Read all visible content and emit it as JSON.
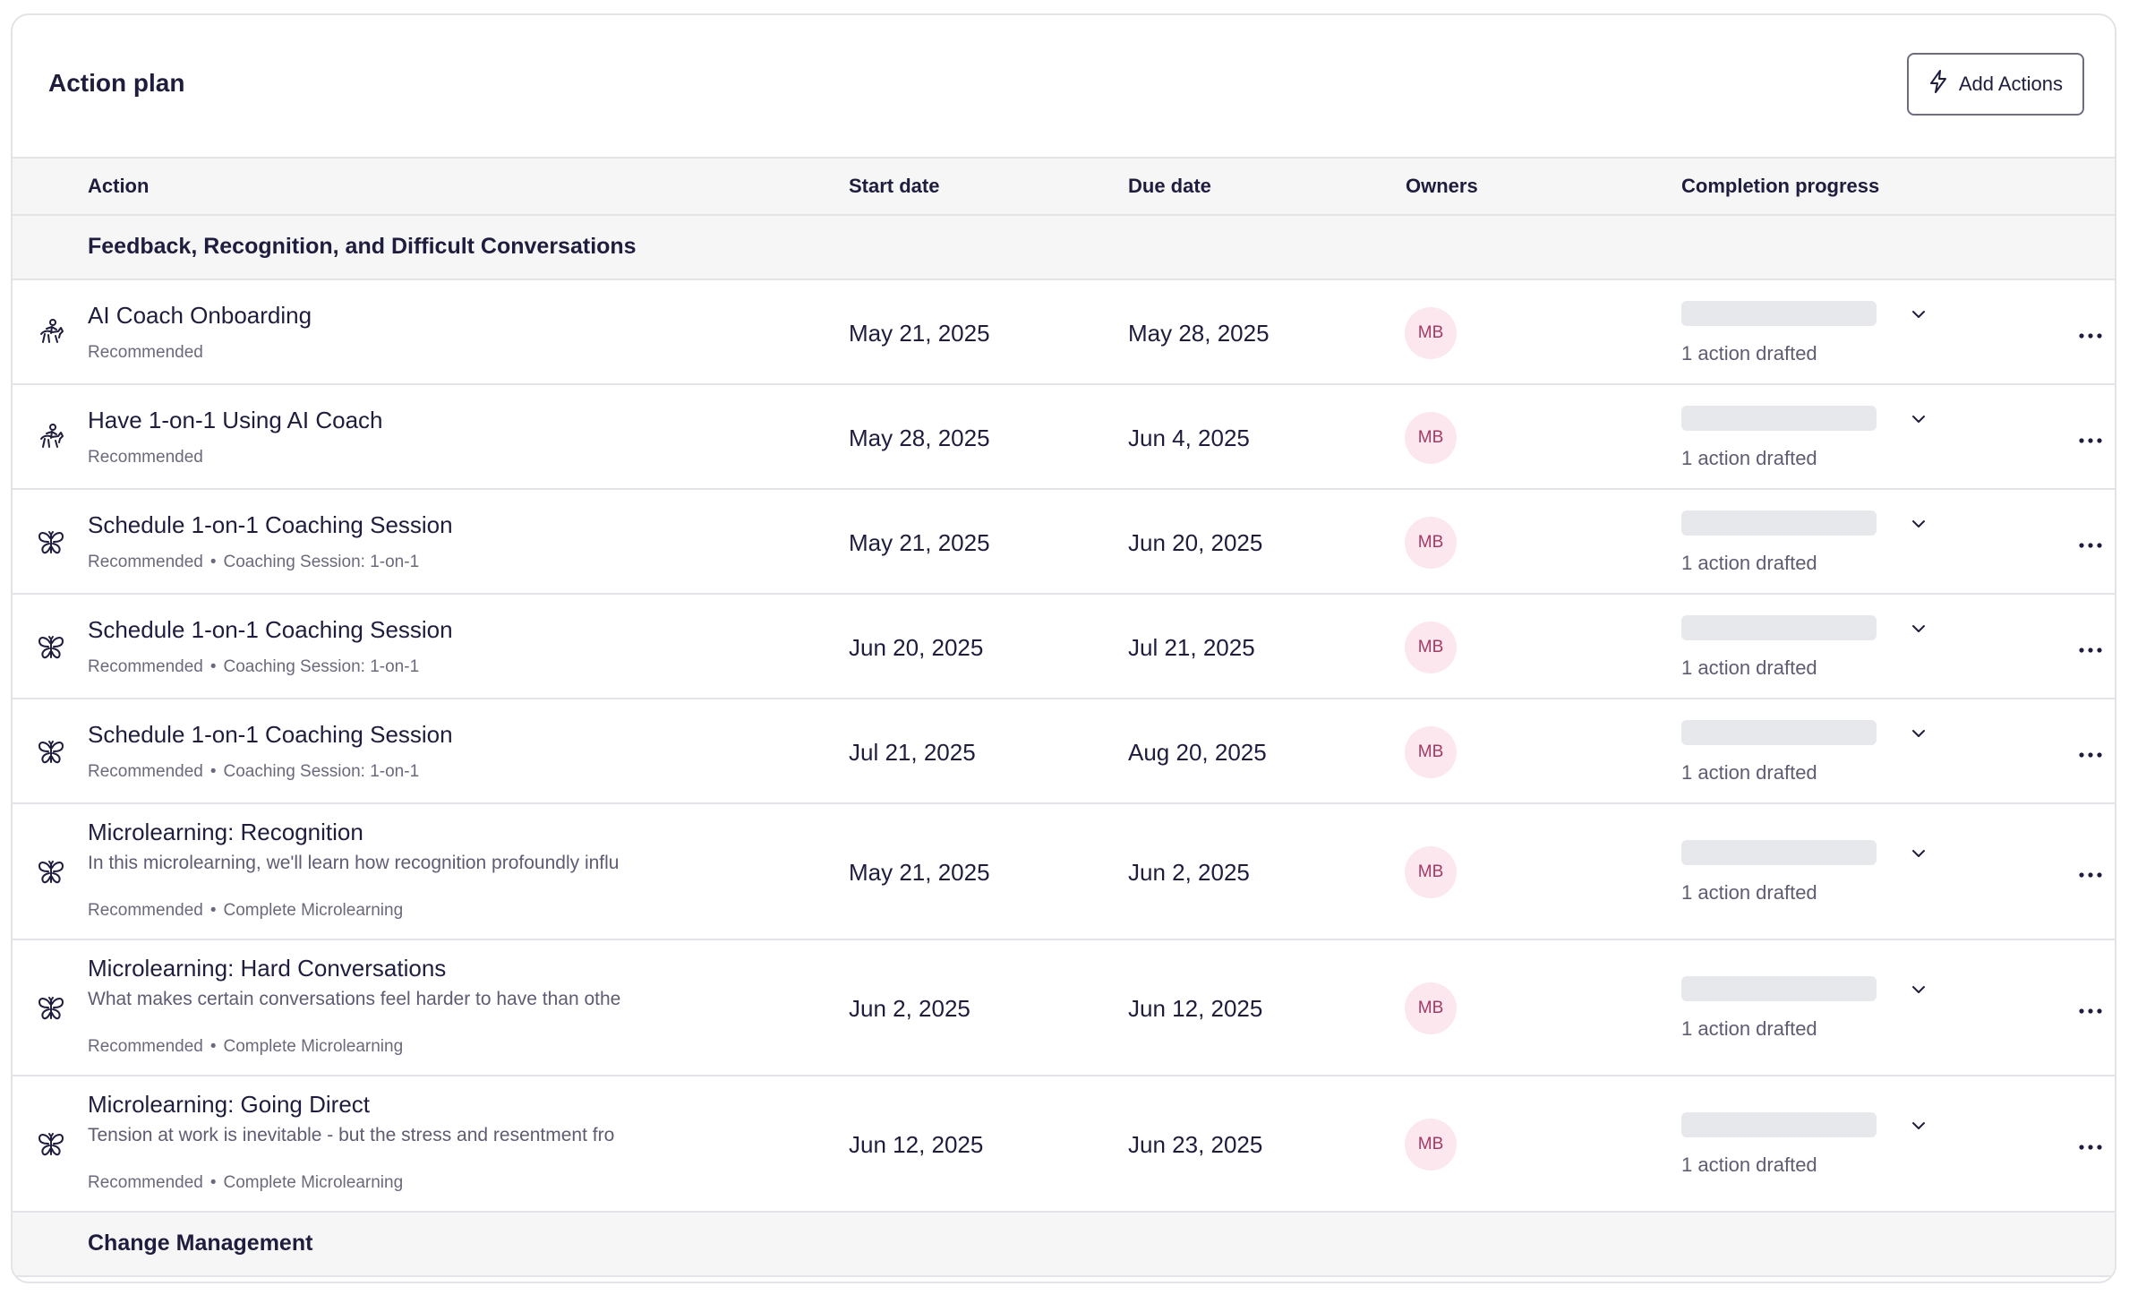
{
  "header": {
    "title": "Action plan",
    "add_button_label": "Add Actions",
    "add_button_icon": "lightning-icon"
  },
  "columns": {
    "action": "Action",
    "start_date": "Start date",
    "due_date": "Due date",
    "owners": "Owners",
    "completion": "Completion progress"
  },
  "groups": [
    {
      "name": "Feedback, Recognition, and Difficult Conversations",
      "actions": [
        {
          "icon": "horse-rider-icon",
          "title": "AI Coach Onboarding",
          "description": "",
          "tags": [
            "Recommended"
          ],
          "start": "May 21, 2025",
          "due": "May 28, 2025",
          "owner": "MB",
          "progress": 0,
          "progress_text": "1 action drafted"
        },
        {
          "icon": "horse-rider-icon",
          "title": "Have 1-on-1 Using AI Coach",
          "description": "",
          "tags": [
            "Recommended"
          ],
          "start": "May 28, 2025",
          "due": "Jun 4, 2025",
          "owner": "MB",
          "progress": 0,
          "progress_text": "1 action drafted"
        },
        {
          "icon": "butterfly-icon",
          "title": "Schedule 1-on-1 Coaching Session",
          "description": "",
          "tags": [
            "Recommended",
            "Coaching Session: 1-on-1"
          ],
          "start": "May 21, 2025",
          "due": "Jun 20, 2025",
          "owner": "MB",
          "progress": 0,
          "progress_text": "1 action drafted"
        },
        {
          "icon": "butterfly-icon",
          "title": "Schedule 1-on-1 Coaching Session",
          "description": "",
          "tags": [
            "Recommended",
            "Coaching Session: 1-on-1"
          ],
          "start": "Jun 20, 2025",
          "due": "Jul 21, 2025",
          "owner": "MB",
          "progress": 0,
          "progress_text": "1 action drafted"
        },
        {
          "icon": "butterfly-icon",
          "title": "Schedule 1-on-1 Coaching Session",
          "description": "",
          "tags": [
            "Recommended",
            "Coaching Session: 1-on-1"
          ],
          "start": "Jul 21, 2025",
          "due": "Aug 20, 2025",
          "owner": "MB",
          "progress": 0,
          "progress_text": "1 action drafted"
        },
        {
          "icon": "butterfly-icon",
          "title": "Microlearning: Recognition",
          "description": "In this microlearning, we'll learn how recognition profoundly influ",
          "tags": [
            "Recommended",
            "Complete Microlearning"
          ],
          "start": "May 21, 2025",
          "due": "Jun 2, 2025",
          "owner": "MB",
          "progress": 0,
          "progress_text": "1 action drafted"
        },
        {
          "icon": "butterfly-icon",
          "title": "Microlearning: Hard Conversations",
          "description": "What makes certain conversations feel harder to have than othe",
          "tags": [
            "Recommended",
            "Complete Microlearning"
          ],
          "start": "Jun 2, 2025",
          "due": "Jun 12, 2025",
          "owner": "MB",
          "progress": 0,
          "progress_text": "1 action drafted"
        },
        {
          "icon": "butterfly-icon",
          "title": "Microlearning: Going Direct",
          "description": "Tension at work is inevitable - but the stress and resentment fro",
          "tags": [
            "Recommended",
            "Complete Microlearning"
          ],
          "start": "Jun 12, 2025",
          "due": "Jun 23, 2025",
          "owner": "MB",
          "progress": 0,
          "progress_text": "1 action drafted"
        }
      ]
    },
    {
      "name": "Change Management",
      "actions": []
    }
  ]
}
